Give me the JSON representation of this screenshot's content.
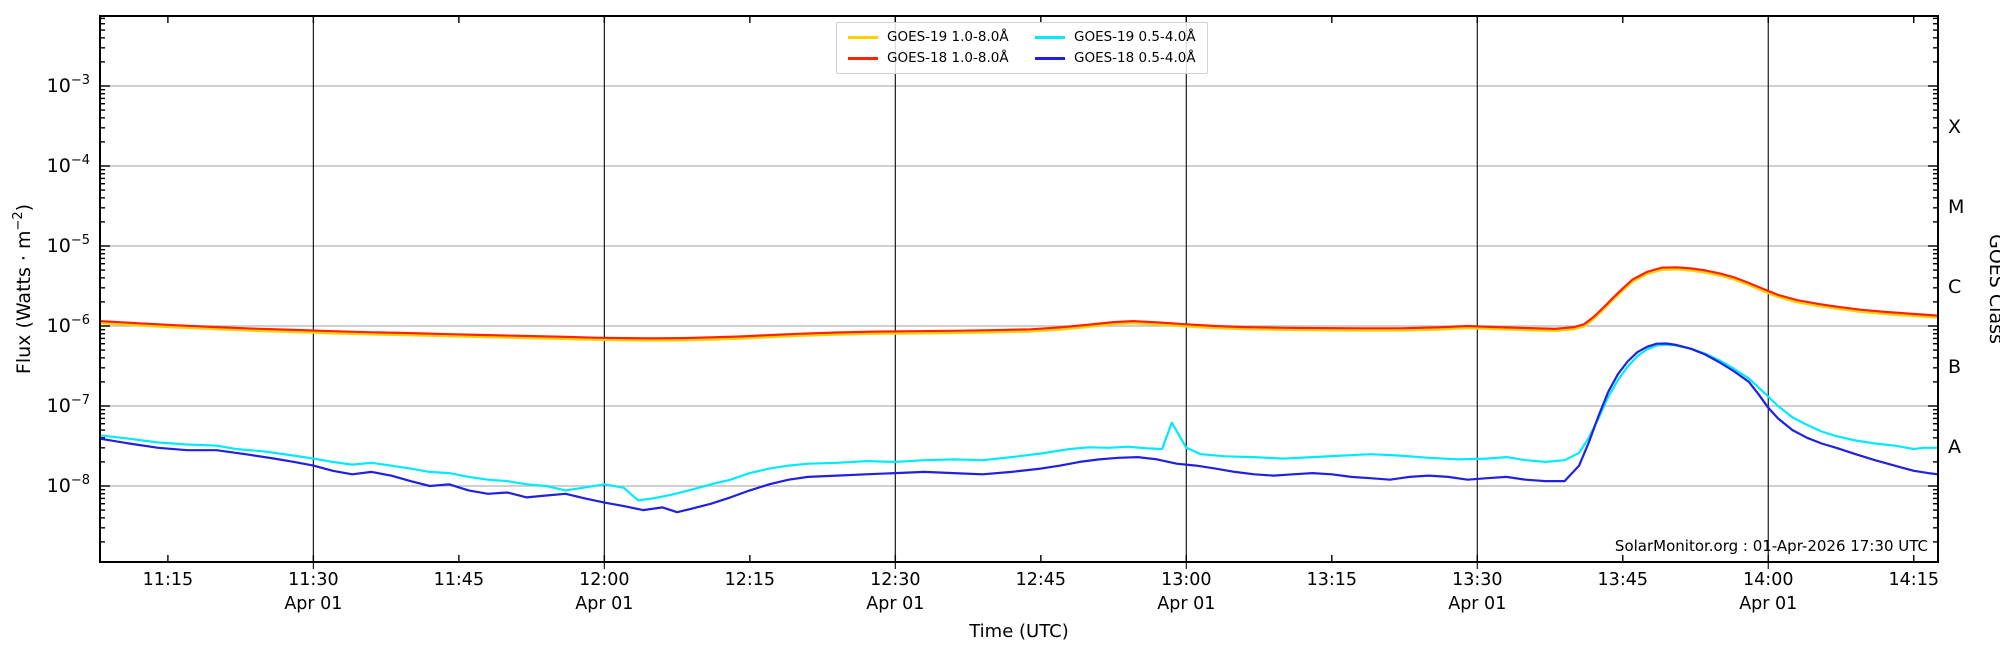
{
  "chart_data": {
    "type": "line",
    "title": "",
    "xlabel": "Time (UTC)",
    "ylabel": "Flux (Watts · m⁻²)",
    "right_ylabel": "GOES Class",
    "credit": "SolarMonitor.org : 01-Apr-2026 17:30 UTC",
    "x_axis": {
      "start_minutes": 668,
      "end_minutes": 857.5,
      "gridline_minutes": [
        690,
        720,
        750,
        780,
        810,
        840
      ],
      "tick_minutes": [
        675,
        690,
        705,
        720,
        735,
        750,
        765,
        780,
        795,
        810,
        825,
        840,
        855
      ],
      "date_label": "Apr 01",
      "date_label_minutes": [
        690,
        720,
        750,
        780,
        810,
        840
      ]
    },
    "y_axis": {
      "scale": "log",
      "decade_exponents": [
        -3,
        -4,
        -5,
        -6,
        -7,
        -8
      ],
      "min_exp": -8.95,
      "max_exp": -2.125,
      "grid": true
    },
    "goes_classes": [
      {
        "letter": "X",
        "exp": -3.5
      },
      {
        "letter": "M",
        "exp": -4.5
      },
      {
        "letter": "C",
        "exp": -5.5
      },
      {
        "letter": "B",
        "exp": -6.5
      },
      {
        "letter": "A",
        "exp": -7.5
      }
    ],
    "legend_position": "top-center",
    "series": [
      {
        "id": "goes19_long",
        "label": "GOES-19 1.0-8.0Å",
        "color": "#ffd000",
        "points_from": "goes18_long",
        "value_scale": 0.94,
        "note": "nearly coincident with GOES-18 1.0-8.0Å, mostly hidden beneath it"
      },
      {
        "id": "goes18_long",
        "label": "GOES-18 1.0-8.0Å",
        "color": "#ff2200",
        "points": [
          [
            668,
            1.15e-06
          ],
          [
            672,
            1.08e-06
          ],
          [
            676,
            1.02e-06
          ],
          [
            680,
            9.7e-07
          ],
          [
            684,
            9.25e-07
          ],
          [
            688,
            8.95e-07
          ],
          [
            692,
            8.6e-07
          ],
          [
            696,
            8.35e-07
          ],
          [
            700,
            8.15e-07
          ],
          [
            704,
            7.9e-07
          ],
          [
            708,
            7.7e-07
          ],
          [
            712,
            7.5e-07
          ],
          [
            716,
            7.3e-07
          ],
          [
            719,
            7.15e-07
          ],
          [
            722,
            7.05e-07
          ],
          [
            725,
            7e-07
          ],
          [
            728,
            7.05e-07
          ],
          [
            731,
            7.2e-07
          ],
          [
            734,
            7.4e-07
          ],
          [
            737,
            7.7e-07
          ],
          [
            740,
            8e-07
          ],
          [
            744,
            8.3e-07
          ],
          [
            748,
            8.5e-07
          ],
          [
            752,
            8.6e-07
          ],
          [
            756,
            8.7e-07
          ],
          [
            760,
            8.85e-07
          ],
          [
            764,
            9.1e-07
          ],
          [
            767,
            9.6e-07
          ],
          [
            770,
            1.04e-06
          ],
          [
            772.5,
            1.12e-06
          ],
          [
            774.5,
            1.15e-06
          ],
          [
            777,
            1.11e-06
          ],
          [
            780,
            1.05e-06
          ],
          [
            783,
            1e-06
          ],
          [
            786,
            9.7e-07
          ],
          [
            790,
            9.5e-07
          ],
          [
            794,
            9.4e-07
          ],
          [
            798,
            9.35e-07
          ],
          [
            802,
            9.35e-07
          ],
          [
            806,
            9.6e-07
          ],
          [
            809,
            1e-06
          ],
          [
            812,
            9.7e-07
          ],
          [
            815,
            9.45e-07
          ],
          [
            818,
            9.2e-07
          ],
          [
            820,
            9.7e-07
          ],
          [
            821,
            1.05e-06
          ],
          [
            822,
            1.3e-06
          ],
          [
            823,
            1.7e-06
          ],
          [
            824,
            2.25e-06
          ],
          [
            825,
            2.95e-06
          ],
          [
            826,
            3.8e-06
          ],
          [
            827.5,
            4.75e-06
          ],
          [
            829,
            5.35e-06
          ],
          [
            830.5,
            5.42e-06
          ],
          [
            832,
            5.25e-06
          ],
          [
            833.5,
            4.95e-06
          ],
          [
            835,
            4.55e-06
          ],
          [
            836.5,
            4.05e-06
          ],
          [
            838,
            3.45e-06
          ],
          [
            839.5,
            2.9e-06
          ],
          [
            841,
            2.45e-06
          ],
          [
            843,
            2.1e-06
          ],
          [
            845,
            1.9e-06
          ],
          [
            847,
            1.75e-06
          ],
          [
            849.5,
            1.6e-06
          ],
          [
            852,
            1.5e-06
          ],
          [
            854.5,
            1.43e-06
          ],
          [
            857.5,
            1.35e-06
          ]
        ]
      },
      {
        "id": "goes19_short",
        "label": "GOES-19 0.5-4.0Å",
        "color": "#00eaff",
        "points": [
          [
            668,
            4.3e-08
          ],
          [
            671,
            3.9e-08
          ],
          [
            674,
            3.5e-08
          ],
          [
            677,
            3.3e-08
          ],
          [
            680,
            3.2e-08
          ],
          [
            682,
            2.9e-08
          ],
          [
            685,
            2.7e-08
          ],
          [
            688,
            2.4e-08
          ],
          [
            690,
            2.2e-08
          ],
          [
            692,
            2e-08
          ],
          [
            694,
            1.85e-08
          ],
          [
            696,
            1.95e-08
          ],
          [
            698,
            1.8e-08
          ],
          [
            700,
            1.65e-08
          ],
          [
            702,
            1.5e-08
          ],
          [
            704,
            1.45e-08
          ],
          [
            706,
            1.3e-08
          ],
          [
            708,
            1.2e-08
          ],
          [
            710,
            1.15e-08
          ],
          [
            712,
            1.05e-08
          ],
          [
            714,
            1e-08
          ],
          [
            716,
            8.8e-09
          ],
          [
            718,
            9.6e-09
          ],
          [
            720,
            1.05e-08
          ],
          [
            722,
            9.5e-09
          ],
          [
            723.5,
            6.6e-09
          ],
          [
            725,
            7e-09
          ],
          [
            727,
            7.8e-09
          ],
          [
            729,
            9e-09
          ],
          [
            731,
            1.05e-08
          ],
          [
            733,
            1.2e-08
          ],
          [
            735,
            1.45e-08
          ],
          [
            737,
            1.65e-08
          ],
          [
            739,
            1.8e-08
          ],
          [
            741,
            1.9e-08
          ],
          [
            744,
            1.95e-08
          ],
          [
            747,
            2.05e-08
          ],
          [
            750,
            2e-08
          ],
          [
            753,
            2.1e-08
          ],
          [
            756,
            2.15e-08
          ],
          [
            759,
            2.1e-08
          ],
          [
            762,
            2.3e-08
          ],
          [
            765,
            2.55e-08
          ],
          [
            768,
            2.9e-08
          ],
          [
            770,
            3.05e-08
          ],
          [
            772,
            3e-08
          ],
          [
            774,
            3.1e-08
          ],
          [
            776,
            2.95e-08
          ],
          [
            777.5,
            2.9e-08
          ],
          [
            778.5,
            6.2e-08
          ],
          [
            780,
            3e-08
          ],
          [
            781.5,
            2.5e-08
          ],
          [
            784,
            2.35e-08
          ],
          [
            787,
            2.3e-08
          ],
          [
            790,
            2.2e-08
          ],
          [
            793,
            2.3e-08
          ],
          [
            796,
            2.4e-08
          ],
          [
            799,
            2.5e-08
          ],
          [
            802,
            2.4e-08
          ],
          [
            805,
            2.25e-08
          ],
          [
            808,
            2.15e-08
          ],
          [
            811,
            2.2e-08
          ],
          [
            813,
            2.3e-08
          ],
          [
            815,
            2.1e-08
          ],
          [
            817,
            2e-08
          ],
          [
            819,
            2.1e-08
          ],
          [
            820.5,
            2.6e-08
          ],
          [
            821.5,
            4e-08
          ],
          [
            822.5,
            7e-08
          ],
          [
            823.5,
            1.3e-07
          ],
          [
            824.5,
            2.1e-07
          ],
          [
            825.5,
            3.1e-07
          ],
          [
            826.5,
            4.2e-07
          ],
          [
            827.5,
            5.1e-07
          ],
          [
            828.5,
            5.7e-07
          ],
          [
            829.5,
            5.85e-07
          ],
          [
            830.5,
            5.7e-07
          ],
          [
            832,
            5.2e-07
          ],
          [
            833.5,
            4.5e-07
          ],
          [
            835,
            3.7e-07
          ],
          [
            836.5,
            2.9e-07
          ],
          [
            838,
            2.2e-07
          ],
          [
            839.5,
            1.5e-07
          ],
          [
            841,
            1e-07
          ],
          [
            842.5,
            7.2e-08
          ],
          [
            844,
            5.8e-08
          ],
          [
            845.5,
            4.8e-08
          ],
          [
            847,
            4.2e-08
          ],
          [
            849,
            3.7e-08
          ],
          [
            851,
            3.4e-08
          ],
          [
            853,
            3.2e-08
          ],
          [
            855,
            2.9e-08
          ],
          [
            856,
            3e-08
          ],
          [
            857.5,
            3e-08
          ]
        ]
      },
      {
        "id": "goes18_short",
        "label": "GOES-18 0.5-4.0Å",
        "color": "#2020e0",
        "points": [
          [
            668,
            3.9e-08
          ],
          [
            671,
            3.4e-08
          ],
          [
            674,
            3e-08
          ],
          [
            677,
            2.8e-08
          ],
          [
            680,
            2.8e-08
          ],
          [
            683,
            2.5e-08
          ],
          [
            686,
            2.2e-08
          ],
          [
            688,
            2e-08
          ],
          [
            690,
            1.8e-08
          ],
          [
            692,
            1.55e-08
          ],
          [
            694,
            1.4e-08
          ],
          [
            696,
            1.5e-08
          ],
          [
            698,
            1.35e-08
          ],
          [
            700,
            1.15e-08
          ],
          [
            702,
            1e-08
          ],
          [
            704,
            1.05e-08
          ],
          [
            706,
            8.8e-09
          ],
          [
            708,
            8e-09
          ],
          [
            710,
            8.3e-09
          ],
          [
            712,
            7.2e-09
          ],
          [
            714,
            7.6e-09
          ],
          [
            716,
            8e-09
          ],
          [
            718,
            7e-09
          ],
          [
            720,
            6.2e-09
          ],
          [
            722,
            5.6e-09
          ],
          [
            724,
            5e-09
          ],
          [
            726,
            5.4e-09
          ],
          [
            727.5,
            4.7e-09
          ],
          [
            729,
            5.2e-09
          ],
          [
            731,
            6e-09
          ],
          [
            733,
            7.2e-09
          ],
          [
            735,
            8.8e-09
          ],
          [
            737,
            1.05e-08
          ],
          [
            739,
            1.2e-08
          ],
          [
            741,
            1.3e-08
          ],
          [
            744,
            1.35e-08
          ],
          [
            747,
            1.4e-08
          ],
          [
            750,
            1.45e-08
          ],
          [
            753,
            1.5e-08
          ],
          [
            756,
            1.45e-08
          ],
          [
            759,
            1.4e-08
          ],
          [
            762,
            1.5e-08
          ],
          [
            765,
            1.65e-08
          ],
          [
            767,
            1.8e-08
          ],
          [
            769,
            2e-08
          ],
          [
            771,
            2.15e-08
          ],
          [
            773,
            2.25e-08
          ],
          [
            775,
            2.3e-08
          ],
          [
            777,
            2.15e-08
          ],
          [
            779,
            1.9e-08
          ],
          [
            781,
            1.8e-08
          ],
          [
            783,
            1.65e-08
          ],
          [
            785,
            1.5e-08
          ],
          [
            787,
            1.4e-08
          ],
          [
            789,
            1.35e-08
          ],
          [
            791,
            1.4e-08
          ],
          [
            793,
            1.45e-08
          ],
          [
            795,
            1.4e-08
          ],
          [
            797,
            1.3e-08
          ],
          [
            799,
            1.25e-08
          ],
          [
            801,
            1.2e-08
          ],
          [
            803,
            1.3e-08
          ],
          [
            805,
            1.35e-08
          ],
          [
            807,
            1.3e-08
          ],
          [
            809,
            1.2e-08
          ],
          [
            811,
            1.25e-08
          ],
          [
            813,
            1.3e-08
          ],
          [
            815,
            1.2e-08
          ],
          [
            817,
            1.15e-08
          ],
          [
            819,
            1.15e-08
          ],
          [
            820.5,
            1.8e-08
          ],
          [
            821.5,
            3.5e-08
          ],
          [
            822.5,
            7.5e-08
          ],
          [
            823.5,
            1.5e-07
          ],
          [
            824.5,
            2.5e-07
          ],
          [
            825.5,
            3.6e-07
          ],
          [
            826.5,
            4.7e-07
          ],
          [
            827.5,
            5.5e-07
          ],
          [
            828.5,
            6e-07
          ],
          [
            829.5,
            6.05e-07
          ],
          [
            830.5,
            5.8e-07
          ],
          [
            832,
            5.2e-07
          ],
          [
            833.5,
            4.4e-07
          ],
          [
            835,
            3.5e-07
          ],
          [
            836.5,
            2.7e-07
          ],
          [
            838,
            2e-07
          ],
          [
            839,
            1.4e-07
          ],
          [
            840,
            9.5e-08
          ],
          [
            841,
            7e-08
          ],
          [
            842.5,
            5e-08
          ],
          [
            844,
            4e-08
          ],
          [
            845.5,
            3.4e-08
          ],
          [
            847,
            3e-08
          ],
          [
            849,
            2.5e-08
          ],
          [
            851,
            2.1e-08
          ],
          [
            853,
            1.8e-08
          ],
          [
            855,
            1.55e-08
          ],
          [
            856.5,
            1.45e-08
          ],
          [
            857.5,
            1.4e-08
          ]
        ]
      }
    ]
  },
  "style_colors": {
    "h_grid": "#b5b5b5",
    "v_grid": "#1a1a1a",
    "spine": "#000000",
    "text": "#000000"
  }
}
